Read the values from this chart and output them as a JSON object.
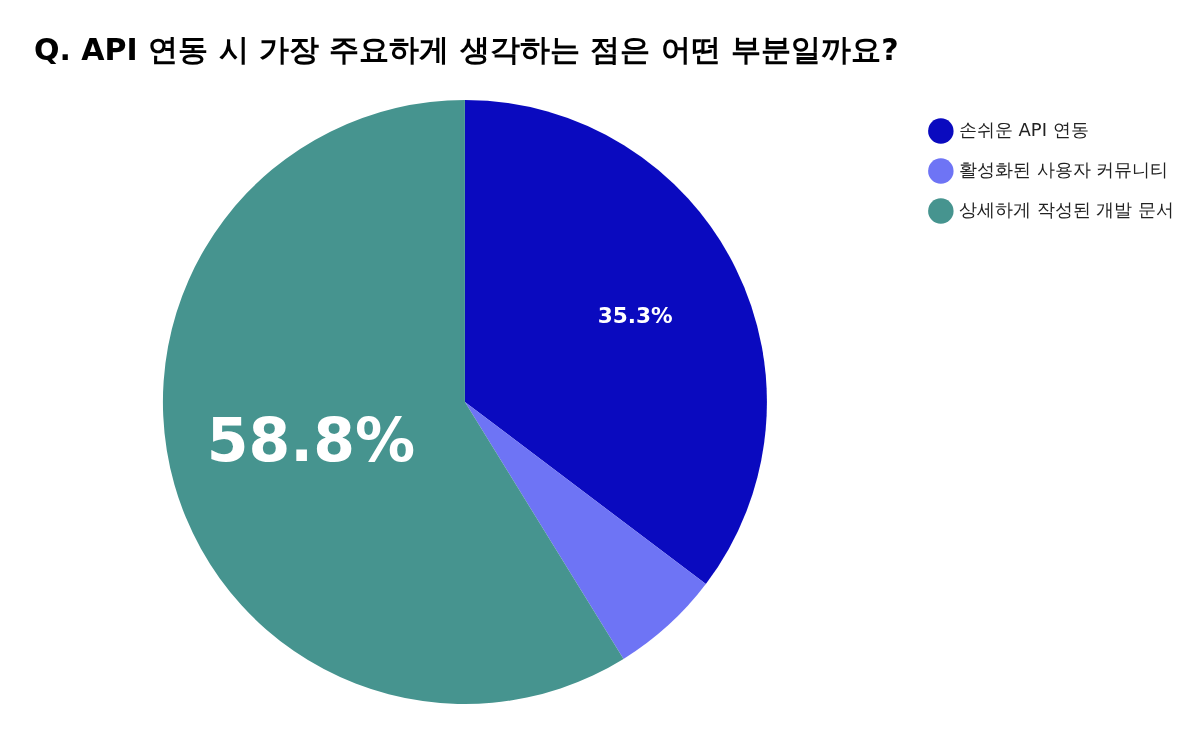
{
  "chart_data": {
    "type": "pie",
    "title": "Q. API 연동 시 가장 주요하게 생각하는 점은 어떤 부분일까요?",
    "categories": [
      "손쉬운 API 연동",
      "활성화된 사용자 커뮤니티",
      "상세하게 작성된 개발 문서"
    ],
    "values": [
      35.3,
      5.9,
      58.8
    ],
    "colors": [
      "#0a0abf",
      "#6e74f5",
      "#46948f"
    ],
    "value_labels": [
      "35.3%",
      null,
      "58.8%"
    ],
    "legend": "top right"
  }
}
